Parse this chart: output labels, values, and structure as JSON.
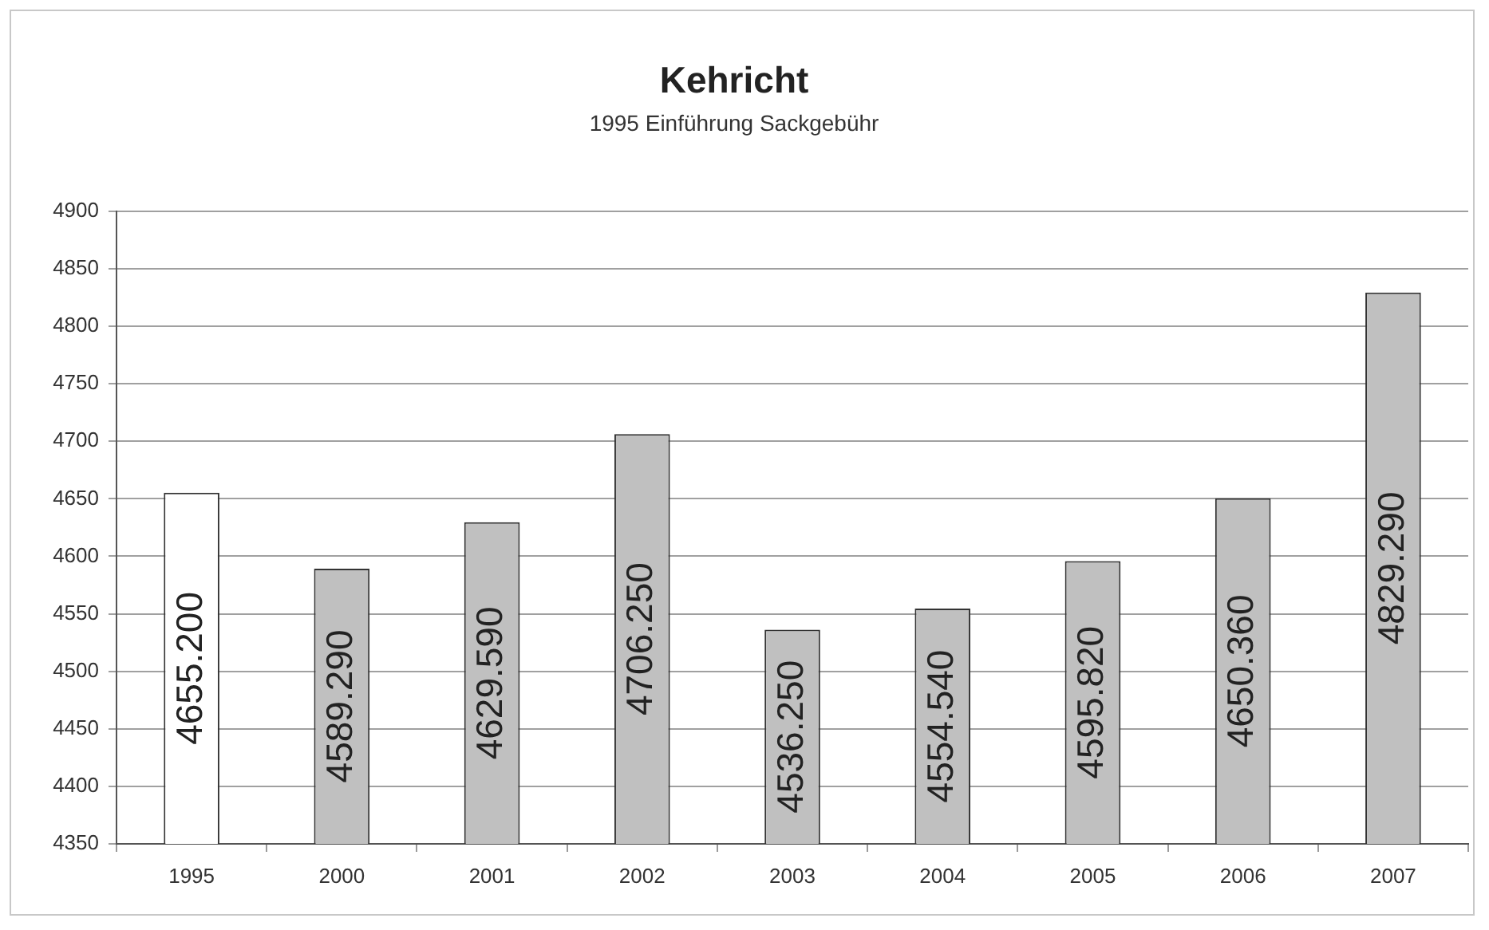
{
  "chart_data": {
    "type": "bar",
    "title": "Kehricht",
    "subtitle": "1995 Einführung Sackgebühr",
    "categories": [
      "1995",
      "2000",
      "2001",
      "2002",
      "2003",
      "2004",
      "2005",
      "2006",
      "2007"
    ],
    "values": [
      4655.2,
      4589.29,
      4629.59,
      4706.25,
      4536.25,
      4554.54,
      4595.82,
      4650.36,
      4829.29
    ],
    "colors": [
      "#ffffff",
      "#c0c0c0",
      "#c0c0c0",
      "#c0c0c0",
      "#c0c0c0",
      "#c0c0c0",
      "#c0c0c0",
      "#c0c0c0",
      "#c0c0c0"
    ],
    "value_labels": [
      "4655.200",
      "4589.290",
      "4629.590",
      "4706.250",
      "4536.250",
      "4554.540",
      "4595.820",
      "4650.360",
      "4829.290"
    ],
    "ylim": [
      4350,
      4900
    ],
    "yticks": [
      4350,
      4400,
      4450,
      4500,
      4550,
      4600,
      4650,
      4700,
      4750,
      4800,
      4850,
      4900
    ],
    "grid": "y",
    "legend": false
  }
}
